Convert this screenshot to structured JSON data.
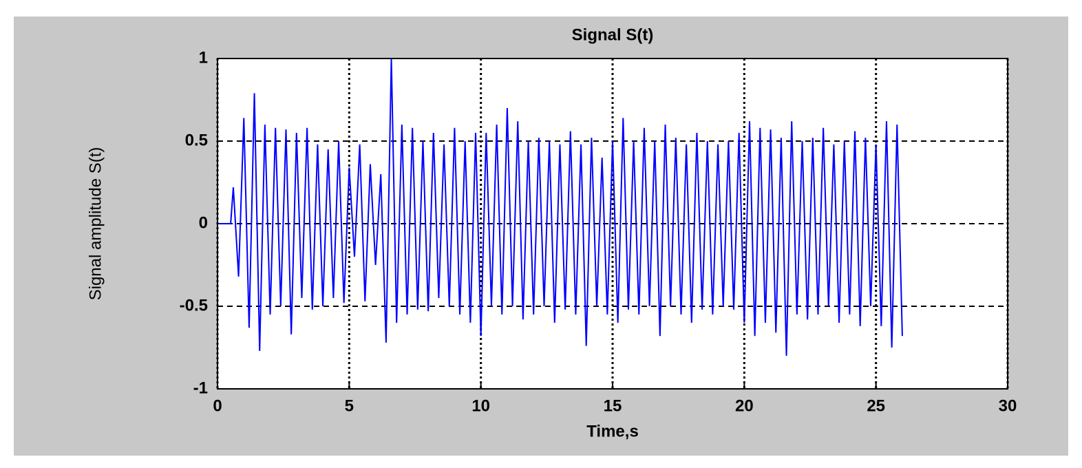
{
  "chart_data": {
    "type": "line",
    "title": "Signal S(t)",
    "x_label": "Time,s",
    "y_label": "Signal amplitude S(t)",
    "color": "#0000ff",
    "grid": true,
    "xlim": [
      0,
      30
    ],
    "xticks": [
      0,
      5,
      10,
      15,
      20,
      25,
      30
    ],
    "ylim": [
      -1,
      1
    ],
    "yticks": [
      -1,
      -0.5,
      0,
      0.5,
      1
    ],
    "x": [
      0,
      0.5,
      0.6,
      0.8,
      1.0,
      1.2,
      1.4,
      1.6,
      1.8,
      2.0,
      2.2,
      2.4,
      2.6,
      2.8,
      3.0,
      3.2,
      3.4,
      3.6,
      3.8,
      4.0,
      4.2,
      4.4,
      4.6,
      4.8,
      5.0,
      5.2,
      5.4,
      5.6,
      5.8,
      6.0,
      6.2,
      6.4,
      6.6,
      6.8,
      7.0,
      7.2,
      7.4,
      7.6,
      7.8,
      8.0,
      8.2,
      8.4,
      8.6,
      8.8,
      9.0,
      9.2,
      9.4,
      9.6,
      9.8,
      10.0,
      10.2,
      10.4,
      10.6,
      10.8,
      11.0,
      11.2,
      11.4,
      11.6,
      11.8,
      12.0,
      12.2,
      12.4,
      12.6,
      12.8,
      13.0,
      13.2,
      13.4,
      13.6,
      13.8,
      14.0,
      14.2,
      14.4,
      14.6,
      14.8,
      15.0,
      15.2,
      15.4,
      15.6,
      15.8,
      16.0,
      16.2,
      16.4,
      16.6,
      16.8,
      17.0,
      17.2,
      17.4,
      17.6,
      17.8,
      18.0,
      18.2,
      18.4,
      18.6,
      18.8,
      19.0,
      19.2,
      19.4,
      19.6,
      19.8,
      20.0,
      20.2,
      20.4,
      20.6,
      20.8,
      21.0,
      21.2,
      21.4,
      21.6,
      21.8,
      22.0,
      22.2,
      22.4,
      22.6,
      22.8,
      23.0,
      23.2,
      23.4,
      23.6,
      23.8,
      24.0,
      24.2,
      24.4,
      24.6,
      24.8,
      25.0,
      25.2,
      25.4,
      25.6,
      25.8,
      26.0
    ],
    "values": [
      0,
      0,
      0.22,
      -0.32,
      0.64,
      -0.63,
      0.79,
      -0.77,
      0.6,
      -0.55,
      0.58,
      -0.5,
      0.57,
      -0.67,
      0.55,
      -0.45,
      0.58,
      -0.52,
      0.48,
      -0.5,
      0.45,
      -0.45,
      0.5,
      -0.48,
      0.34,
      -0.2,
      0.48,
      -0.47,
      0.36,
      -0.25,
      0.3,
      -0.72,
      1.0,
      -0.6,
      0.6,
      -0.55,
      0.58,
      -0.52,
      0.5,
      -0.53,
      0.55,
      -0.45,
      0.48,
      -0.5,
      0.58,
      -0.55,
      0.5,
      -0.6,
      0.55,
      -0.68,
      0.55,
      -0.5,
      0.6,
      -0.55,
      0.7,
      -0.5,
      0.62,
      -0.58,
      0.5,
      -0.55,
      0.52,
      -0.5,
      0.5,
      -0.6,
      0.48,
      -0.52,
      0.56,
      -0.55,
      0.48,
      -0.74,
      0.52,
      -0.5,
      0.4,
      -0.55,
      0.5,
      -0.6,
      0.64,
      -0.52,
      0.5,
      -0.55,
      0.58,
      -0.5,
      0.5,
      -0.68,
      0.6,
      -0.5,
      0.52,
      -0.55,
      0.48,
      -0.6,
      0.55,
      -0.52,
      0.5,
      -0.55,
      0.48,
      -0.5,
      0.5,
      -0.52,
      0.55,
      -0.6,
      0.62,
      -0.68,
      0.58,
      -0.6,
      0.57,
      -0.66,
      0.52,
      -0.8,
      0.62,
      -0.55,
      0.5,
      -0.58,
      0.52,
      -0.55,
      0.58,
      -0.5,
      0.48,
      -0.6,
      0.5,
      -0.55,
      0.56,
      -0.62,
      0.52,
      -0.5,
      0.48,
      -0.62,
      0.62,
      -0.75,
      0.6,
      -0.68
    ]
  }
}
